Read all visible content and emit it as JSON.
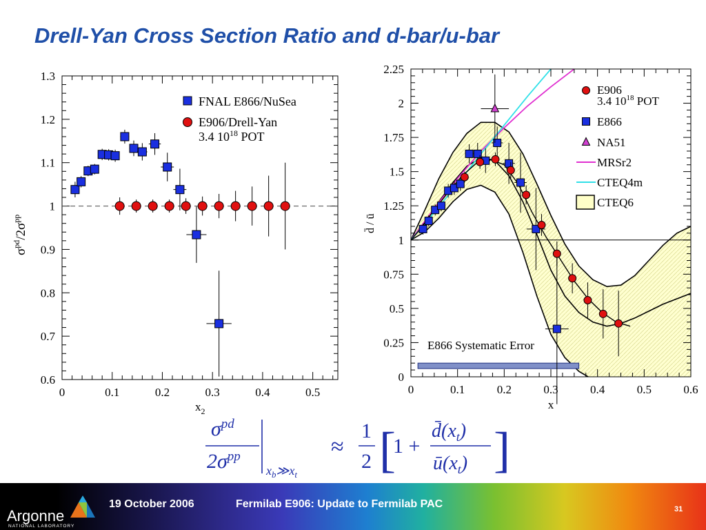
{
  "slide": {
    "title": "Drell-Yan Cross Section Ratio and d-bar/u-bar"
  },
  "footer": {
    "org_name": "Argonne",
    "org_sub": "NATIONAL LABORATORY",
    "date": "19 October 2006",
    "talk": "Fermilab E906:  Update to Fermilab PAC",
    "page": "31",
    "logo_colors": [
      "#e8731c",
      "#8dc63f",
      "#2aa9e0",
      "#1b75bb"
    ]
  },
  "formula": {
    "lhs_num": "σ",
    "lhs_num_sup": "pd",
    "lhs_den_coef": "2σ",
    "lhs_den_sup": "pp",
    "condition_main": "x",
    "condition_b": "b",
    "condition_op": "≫",
    "condition_main2": "x",
    "condition_t": "t",
    "approx": "≈",
    "half_num": "1",
    "half_den": "2",
    "bracket_left": "[",
    "one_plus": "1 +",
    "rhs_num": "d̄(x",
    "rhs_num_sub": "t",
    "rhs_num_close": ")",
    "rhs_den": "ū(x",
    "rhs_den_sub": "t",
    "rhs_den_close": ")",
    "bracket_right": "]",
    "color": "#1f2fa8"
  },
  "chart_data": [
    {
      "type": "scatter",
      "title": "",
      "xlabel": "x",
      "xlabel_sub": "2",
      "ylabel_parts": [
        "σ",
        "pd",
        "/2σ",
        "pp"
      ],
      "xlim": [
        0,
        0.55
      ],
      "ylim": [
        0.6,
        1.3
      ],
      "xticks": [
        0,
        0.1,
        0.2,
        0.3,
        0.4,
        0.5
      ],
      "xtick_labels": [
        "0",
        "0.1",
        "0.2",
        "0.3",
        "0.4",
        "0.5"
      ],
      "yticks": [
        0.6,
        0.7,
        0.8,
        0.9,
        1.0,
        1.1,
        1.2,
        1.3
      ],
      "ytick_labels": [
        "0.6",
        "0.7",
        "0.8",
        "0.9",
        "1",
        "1.1",
        "1.2",
        "1.3"
      ],
      "reference_line": 1.0,
      "legend": [
        {
          "label": "FNAL E866/NuSea",
          "marker": "square",
          "color": "#1a2fe0"
        },
        {
          "label": "E906/Drell-Yan",
          "label2_main": "3.4 10",
          "label2_sup": "18",
          "label2_tail": " POT",
          "marker": "circle",
          "color": "#e01010"
        }
      ],
      "series": [
        {
          "name": "FNAL E866/NuSea",
          "marker": "square",
          "color": "#1a2fe0",
          "points": [
            {
              "x": 0.026,
              "y": 1.038,
              "ex": 0.008,
              "ey": 0.018
            },
            {
              "x": 0.038,
              "y": 1.056,
              "ex": 0.008,
              "ey": 0.013
            },
            {
              "x": 0.052,
              "y": 1.081,
              "ex": 0.008,
              "ey": 0.012
            },
            {
              "x": 0.065,
              "y": 1.085,
              "ex": 0.008,
              "ey": 0.012
            },
            {
              "x": 0.08,
              "y": 1.119,
              "ex": 0.008,
              "ey": 0.013
            },
            {
              "x": 0.093,
              "y": 1.118,
              "ex": 0.008,
              "ey": 0.013
            },
            {
              "x": 0.106,
              "y": 1.116,
              "ex": 0.008,
              "ey": 0.014
            },
            {
              "x": 0.125,
              "y": 1.16,
              "ex": 0.009,
              "ey": 0.016
            },
            {
              "x": 0.143,
              "y": 1.133,
              "ex": 0.009,
              "ey": 0.018
            },
            {
              "x": 0.16,
              "y": 1.125,
              "ex": 0.01,
              "ey": 0.02
            },
            {
              "x": 0.185,
              "y": 1.143,
              "ex": 0.012,
              "ey": 0.025
            },
            {
              "x": 0.21,
              "y": 1.09,
              "ex": 0.013,
              "ey": 0.033
            },
            {
              "x": 0.235,
              "y": 1.038,
              "ex": 0.013,
              "ey": 0.048
            },
            {
              "x": 0.268,
              "y": 0.934,
              "ex": 0.02,
              "ey": 0.065
            },
            {
              "x": 0.313,
              "y": 0.729,
              "ex": 0.025,
              "ey": 0.122
            }
          ]
        },
        {
          "name": "E906/Drell-Yan",
          "marker": "circle",
          "color": "#e01010",
          "points": [
            {
              "x": 0.115,
              "y": 1.0,
              "ex": 0,
              "ey": 0.02
            },
            {
              "x": 0.148,
              "y": 1.0,
              "ex": 0,
              "ey": 0.015
            },
            {
              "x": 0.181,
              "y": 1.0,
              "ex": 0,
              "ey": 0.015
            },
            {
              "x": 0.214,
              "y": 1.0,
              "ex": 0,
              "ey": 0.015
            },
            {
              "x": 0.247,
              "y": 1.0,
              "ex": 0,
              "ey": 0.018
            },
            {
              "x": 0.28,
              "y": 1.0,
              "ex": 0,
              "ey": 0.022
            },
            {
              "x": 0.313,
              "y": 1.0,
              "ex": 0,
              "ey": 0.028
            },
            {
              "x": 0.346,
              "y": 1.0,
              "ex": 0,
              "ey": 0.035
            },
            {
              "x": 0.379,
              "y": 1.0,
              "ex": 0,
              "ey": 0.045
            },
            {
              "x": 0.412,
              "y": 1.0,
              "ex": 0,
              "ey": 0.07
            },
            {
              "x": 0.445,
              "y": 1.0,
              "ex": 0,
              "ey": 0.1
            }
          ]
        }
      ]
    },
    {
      "type": "scatter",
      "title": "",
      "xlabel": "x",
      "ylabel": "d̄ / ū",
      "xlim": [
        0,
        0.6
      ],
      "ylim": [
        0,
        2.25
      ],
      "xticks": [
        0,
        0.1,
        0.2,
        0.3,
        0.4,
        0.5,
        0.6
      ],
      "xtick_labels": [
        "0",
        "0.1",
        "0.2",
        "0.3",
        "0.4",
        "0.5",
        "0.6"
      ],
      "yticks": [
        0,
        0.25,
        0.5,
        0.75,
        1.0,
        1.25,
        1.5,
        1.75,
        2.0,
        2.25
      ],
      "ytick_labels": [
        "0",
        "0.25",
        "0.5",
        "0.75",
        "1",
        "1.25",
        "1.5",
        "1.75",
        "2",
        "2.25"
      ],
      "reference_line": 1.0,
      "legend": [
        {
          "label": "E906",
          "label2_main": "3.4 10",
          "label2_sup": "18",
          "label2_tail": " POT",
          "marker": "circle",
          "color": "#e01010"
        },
        {
          "label": "E866",
          "marker": "square",
          "color": "#1a2fe0"
        },
        {
          "label": "NA51",
          "marker": "triangle",
          "color": "#d040d0"
        },
        {
          "label": "MRSr2",
          "marker": "line",
          "color": "#e030d0"
        },
        {
          "label": "CTEQ4m",
          "marker": "line",
          "color": "#30e0e8"
        },
        {
          "label": "CTEQ6",
          "marker": "box",
          "color": "#ffffc8"
        }
      ],
      "annotation": "E866 Systematic Error",
      "systematic_band": {
        "x": [
          0.015,
          0.36
        ],
        "y": [
          0.06,
          0.1
        ]
      },
      "series": [
        {
          "name": "E866",
          "marker": "square",
          "color": "#1a2fe0",
          "points": [
            {
              "x": 0.026,
              "y": 1.08,
              "ex": 0.008,
              "ey": 0.04
            },
            {
              "x": 0.038,
              "y": 1.14,
              "ex": 0.008,
              "ey": 0.04
            },
            {
              "x": 0.052,
              "y": 1.22,
              "ex": 0.008,
              "ey": 0.04
            },
            {
              "x": 0.065,
              "y": 1.25,
              "ex": 0.008,
              "ey": 0.04
            },
            {
              "x": 0.08,
              "y": 1.36,
              "ex": 0.008,
              "ey": 0.05
            },
            {
              "x": 0.093,
              "y": 1.38,
              "ex": 0.008,
              "ey": 0.05
            },
            {
              "x": 0.106,
              "y": 1.41,
              "ex": 0.008,
              "ey": 0.05
            },
            {
              "x": 0.125,
              "y": 1.63,
              "ex": 0.009,
              "ey": 0.07
            },
            {
              "x": 0.143,
              "y": 1.63,
              "ex": 0.009,
              "ey": 0.08
            },
            {
              "x": 0.16,
              "y": 1.58,
              "ex": 0.01,
              "ey": 0.09
            },
            {
              "x": 0.185,
              "y": 1.71,
              "ex": 0.012,
              "ey": 0.12
            },
            {
              "x": 0.21,
              "y": 1.56,
              "ex": 0.013,
              "ey": 0.15
            },
            {
              "x": 0.235,
              "y": 1.42,
              "ex": 0.013,
              "ey": 0.22
            },
            {
              "x": 0.268,
              "y": 1.08,
              "ex": 0.02,
              "ey": 0.3
            },
            {
              "x": 0.313,
              "y": 0.35,
              "ex": 0.025,
              "ey": 0.55
            }
          ]
        },
        {
          "name": "E906",
          "marker": "circle",
          "color": "#e01010",
          "points": [
            {
              "x": 0.115,
              "y": 1.46,
              "ey": 0.04
            },
            {
              "x": 0.148,
              "y": 1.57,
              "ey": 0.05
            },
            {
              "x": 0.181,
              "y": 1.59,
              "ey": 0.05
            },
            {
              "x": 0.214,
              "y": 1.51,
              "ey": 0.06
            },
            {
              "x": 0.247,
              "y": 1.33,
              "ey": 0.07
            },
            {
              "x": 0.28,
              "y": 1.11,
              "ey": 0.08
            },
            {
              "x": 0.313,
              "y": 0.9,
              "ey": 0.09
            },
            {
              "x": 0.346,
              "y": 0.72,
              "ey": 0.11
            },
            {
              "x": 0.379,
              "y": 0.56,
              "ey": 0.13
            },
            {
              "x": 0.412,
              "y": 0.46,
              "ey": 0.18
            },
            {
              "x": 0.445,
              "y": 0.39,
              "ey": 0.24
            }
          ]
        },
        {
          "name": "NA51",
          "marker": "triangle",
          "color": "#d040d0",
          "points": [
            {
              "x": 0.18,
              "y": 1.96,
              "ex": 0.03,
              "ey": 0.25
            }
          ]
        },
        {
          "name": "E906 curve",
          "line": true,
          "color": "#000000",
          "x": [
            0.0,
            0.02,
            0.05,
            0.08,
            0.11,
            0.14,
            0.17,
            0.2,
            0.23,
            0.26,
            0.29,
            0.32,
            0.35,
            0.38,
            0.41,
            0.44,
            0.47
          ],
          "y": [
            1.0,
            1.08,
            1.22,
            1.35,
            1.47,
            1.56,
            1.59,
            1.55,
            1.41,
            1.2,
            1.02,
            0.86,
            0.7,
            0.57,
            0.47,
            0.4,
            0.37
          ]
        },
        {
          "name": "MRSr2",
          "line": true,
          "color": "#e030d0",
          "x": [
            0.0,
            0.05,
            0.1,
            0.15,
            0.2,
            0.25,
            0.3,
            0.35
          ],
          "y": [
            1.0,
            1.23,
            1.45,
            1.65,
            1.82,
            1.98,
            2.12,
            2.25
          ]
        },
        {
          "name": "CTEQ4m",
          "line": true,
          "color": "#30e0e8",
          "x": [
            0.0,
            0.05,
            0.1,
            0.15,
            0.2,
            0.25,
            0.3
          ],
          "y": [
            1.0,
            1.2,
            1.41,
            1.63,
            1.84,
            2.05,
            2.25
          ]
        },
        {
          "name": "CTEQ6 upper",
          "band_edge": "upper",
          "color": "#000000",
          "x": [
            0.0,
            0.03,
            0.06,
            0.09,
            0.12,
            0.15,
            0.18,
            0.21,
            0.24,
            0.27,
            0.3,
            0.33,
            0.36,
            0.39,
            0.42,
            0.45,
            0.48,
            0.51,
            0.54,
            0.57,
            0.6
          ],
          "y": [
            1.0,
            1.22,
            1.45,
            1.64,
            1.78,
            1.86,
            1.86,
            1.79,
            1.63,
            1.41,
            1.18,
            0.97,
            0.81,
            0.71,
            0.66,
            0.67,
            0.74,
            0.85,
            0.96,
            1.05,
            1.1
          ]
        },
        {
          "name": "CTEQ6 lower",
          "band_edge": "lower",
          "color": "#000000",
          "x": [
            0.0,
            0.03,
            0.06,
            0.09,
            0.12,
            0.15,
            0.18,
            0.21,
            0.24,
            0.27,
            0.3,
            0.33,
            0.36,
            0.38
          ],
          "y": [
            1.0,
            1.06,
            1.16,
            1.28,
            1.37,
            1.4,
            1.35,
            1.19,
            0.91,
            0.59,
            0.31,
            0.14,
            0.04,
            0.0
          ]
        },
        {
          "name": "CTEQ6 central",
          "line": true,
          "color": "#000000",
          "x": [
            0.0,
            0.03,
            0.06,
            0.09,
            0.12,
            0.15,
            0.18,
            0.21,
            0.24,
            0.27,
            0.3,
            0.33,
            0.36,
            0.39,
            0.42,
            0.45,
            0.48,
            0.51,
            0.54,
            0.57,
            0.6
          ],
          "y": [
            1.0,
            1.13,
            1.28,
            1.42,
            1.54,
            1.6,
            1.58,
            1.47,
            1.28,
            1.04,
            0.78,
            0.59,
            0.47,
            0.4,
            0.37,
            0.39,
            0.43,
            0.48,
            0.53,
            0.57,
            0.61
          ]
        }
      ]
    }
  ]
}
